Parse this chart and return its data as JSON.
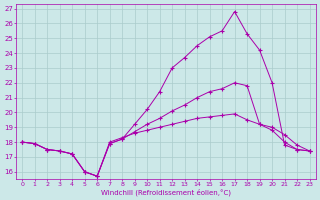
{
  "title": "",
  "xlabel": "Windchill (Refroidissement éolien,°C)",
  "ylabel": "",
  "x_ticks": [
    0,
    1,
    2,
    3,
    4,
    5,
    6,
    7,
    8,
    9,
    10,
    11,
    12,
    13,
    14,
    15,
    16,
    17,
    18,
    19,
    20,
    21,
    22,
    23
  ],
  "ylim": [
    16,
    27
  ],
  "xlim": [
    -0.5,
    23.5
  ],
  "yticks": [
    16,
    17,
    18,
    19,
    20,
    21,
    22,
    23,
    24,
    25,
    26,
    27
  ],
  "bg_color": "#cce8e8",
  "line_color": "#aa00aa",
  "grid_color": "#aacccc",
  "line1_x": [
    0,
    1,
    2,
    3,
    4,
    5,
    6,
    7,
    8,
    9,
    10,
    11,
    12,
    13,
    14,
    15,
    16,
    17,
    18,
    19,
    20,
    21,
    22,
    23
  ],
  "line1_y": [
    18.0,
    17.9,
    17.5,
    17.4,
    17.2,
    16.0,
    15.7,
    17.9,
    18.2,
    19.2,
    20.2,
    21.4,
    23.0,
    23.7,
    24.5,
    25.1,
    25.5,
    26.8,
    25.3,
    24.2,
    22.0,
    17.8,
    17.5,
    17.4
  ],
  "line2_x": [
    0,
    1,
    2,
    3,
    4,
    5,
    6,
    7,
    8,
    9,
    10,
    11,
    12,
    13,
    14,
    15,
    16,
    17,
    18,
    19,
    20,
    21,
    22,
    23
  ],
  "line2_y": [
    18.0,
    17.9,
    17.5,
    17.4,
    17.2,
    16.0,
    15.7,
    18.0,
    18.3,
    18.6,
    18.8,
    19.0,
    19.2,
    19.4,
    19.6,
    19.7,
    19.8,
    19.9,
    19.5,
    19.2,
    19.0,
    18.5,
    17.8,
    17.4
  ],
  "line3_x": [
    0,
    1,
    2,
    3,
    4,
    5,
    6,
    7,
    8,
    9,
    10,
    11,
    12,
    13,
    14,
    15,
    16,
    17,
    18,
    19,
    20,
    21,
    22,
    23
  ],
  "line3_y": [
    18.0,
    17.9,
    17.5,
    17.4,
    17.2,
    16.0,
    15.7,
    17.9,
    18.2,
    18.7,
    19.2,
    19.6,
    20.1,
    20.5,
    21.0,
    21.4,
    21.6,
    22.0,
    21.8,
    19.2,
    18.8,
    18.0,
    17.5,
    17.4
  ]
}
